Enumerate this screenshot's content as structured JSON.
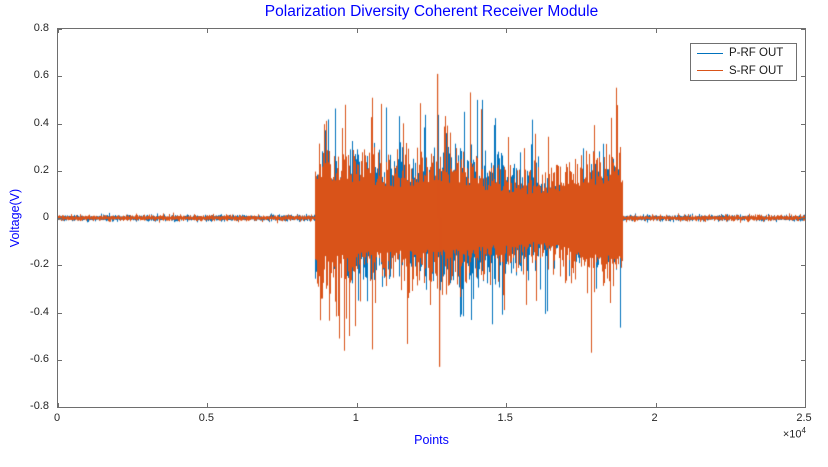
{
  "figure": {
    "background_color": "#FFFFFF",
    "text_accent_color": "#0000FF",
    "axes_box_color": "#6e6e6e",
    "tick_label_color": "#262626"
  },
  "chart_data": {
    "type": "line",
    "title": "Polarization Diversity Coherent Receiver Module",
    "xlabel": "Points",
    "ylabel": "Voltage(V)",
    "xlim": [
      0,
      25000
    ],
    "ylim": [
      -0.8,
      0.8
    ],
    "grid": false,
    "x_tick_values": [
      0,
      5000,
      10000,
      15000,
      20000,
      25000
    ],
    "x_tick_labels": [
      "0",
      "0.5",
      "1",
      "1.5",
      "2",
      "2.5"
    ],
    "x_multiplier": {
      "base": "×10",
      "power": "4"
    },
    "y_tick_values": [
      -0.8,
      -0.6,
      -0.4,
      -0.2,
      0,
      0.2,
      0.4,
      0.6,
      0.8
    ],
    "y_tick_labels": [
      "-0.8",
      "-0.6",
      "-0.4",
      "-0.2",
      "0",
      "0.2",
      "0.4",
      "0.6",
      "0.8"
    ],
    "legend": {
      "position": "top-right",
      "entries": [
        {
          "label": "P-RF OUT",
          "color": "#0072BD"
        },
        {
          "label": "S-RF OUT",
          "color": "#D95319"
        }
      ]
    },
    "series": [
      {
        "name": "P-RF OUT",
        "color": "#0072BD"
      },
      {
        "name": "S-RF OUT",
        "color": "#D95319"
      }
    ],
    "signal_model": {
      "description": "Two overlaid noise waveforms: low-level noise floor with a high-amplitude noise burst in the middle of the record",
      "noise_floor_amplitude_v": 0.015,
      "burst_start_points": 8600,
      "burst_end_points": 18900,
      "burst_typical_amplitude_v": 0.25,
      "p_rf_peak_v": 0.5,
      "p_rf_min_v": -0.55,
      "s_rf_peak_v": 0.61,
      "s_rf_min_v": -0.63,
      "notable_peaks": [
        {
          "points": 12700,
          "voltage": 0.61,
          "series": "S-RF OUT"
        },
        {
          "points": 12760,
          "voltage": -0.63,
          "series": "S-RF OUT"
        }
      ],
      "seed": 1337
    }
  }
}
